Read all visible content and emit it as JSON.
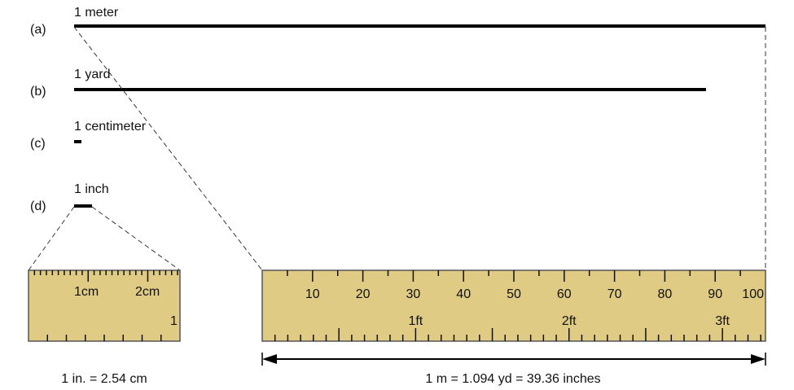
{
  "rows": [
    {
      "letter": "(a)",
      "label": "1 meter"
    },
    {
      "letter": "(b)",
      "label": "1 yard"
    },
    {
      "letter": "(c)",
      "label": "1 centimeter"
    },
    {
      "letter": "(d)",
      "label": "1 inch"
    }
  ],
  "inch_ruler": {
    "cm_labels": [
      "1cm",
      "2cm"
    ],
    "inch_label": "1",
    "caption": "1 in. = 2.54 cm"
  },
  "meter_ruler": {
    "cm_labels": [
      "10",
      "20",
      "30",
      "40",
      "50",
      "60",
      "70",
      "80",
      "90",
      "100"
    ],
    "ft_labels": [
      "1ft",
      "2ft",
      "3ft"
    ],
    "caption": "1 m = 1.094 yd = 39.36 inches"
  },
  "colors": {
    "ruler": "#e0cb85",
    "ruler_edge": "#555555",
    "line": "#000000"
  }
}
